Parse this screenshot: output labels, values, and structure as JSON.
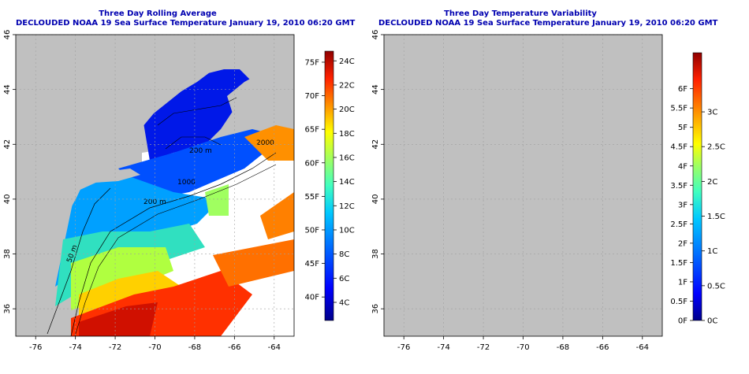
{
  "left_panel": {
    "title": "Three Day Rolling Average",
    "subtitle": "DECLOUDED NOAA 19 Sea Surface Temperature January 19, 2010 06:20 GMT",
    "x_ticks": [
      "-76",
      "-74",
      "-72",
      "-70",
      "-68",
      "-66",
      "-64"
    ],
    "y_ticks": [
      "46",
      "44",
      "42",
      "40",
      "38",
      "36"
    ],
    "colorbar": {
      "f_labels": [
        "75F",
        "70F",
        "65F",
        "60F",
        "55F",
        "50F",
        "45F",
        "40F"
      ],
      "f_values": [
        75,
        70,
        65,
        60,
        55,
        50,
        45,
        40
      ],
      "c_labels": [
        "24C",
        "22C",
        "20C",
        "18C",
        "16C",
        "14C",
        "12C",
        "10C",
        "8C",
        "6C",
        "4C"
      ],
      "c_values": [
        24,
        22,
        20,
        18,
        16,
        14,
        12,
        10,
        8,
        6,
        4
      ],
      "range_c": [
        2.5,
        24.8
      ]
    },
    "contour_labels": [
      "200 m",
      "200 m",
      "50 m",
      "1000",
      "2000"
    ]
  },
  "right_panel": {
    "title": "Three Day Temperature Variability",
    "subtitle": "DECLOUDED NOAA 19 Sea Surface Temperature January 19, 2010 06:20 GMT",
    "x_ticks": [
      "-76",
      "-74",
      "-72",
      "-70",
      "-68",
      "-66",
      "-64"
    ],
    "y_ticks": [
      "46",
      "44",
      "42",
      "40",
      "38",
      "36"
    ],
    "colorbar": {
      "f_labels": [
        "6F",
        "5.5F",
        "5F",
        "4.5F",
        "4F",
        "3.5F",
        "3F",
        "2.5F",
        "2F",
        "1.5F",
        "1F",
        "0.5F",
        "0F"
      ],
      "f_values": [
        6,
        5.5,
        5,
        4.5,
        4,
        3.5,
        3,
        2.5,
        2,
        1.5,
        1,
        0.5,
        0
      ],
      "c_labels": [
        "3C",
        "2.5C",
        "2C",
        "1.5C",
        "1C",
        "0.5C",
        "0C"
      ],
      "c_values": [
        3,
        2.5,
        2,
        1.5,
        1,
        0.5,
        0
      ],
      "range_c": [
        0,
        3.85
      ]
    }
  },
  "map_extent": {
    "lon": [
      -77,
      -63
    ],
    "lat": [
      35,
      46
    ]
  },
  "colors": {
    "land": "#c0c0c0",
    "cloud": "#ffffff",
    "title": "#0000b0",
    "grid": "#a0a0a0"
  }
}
